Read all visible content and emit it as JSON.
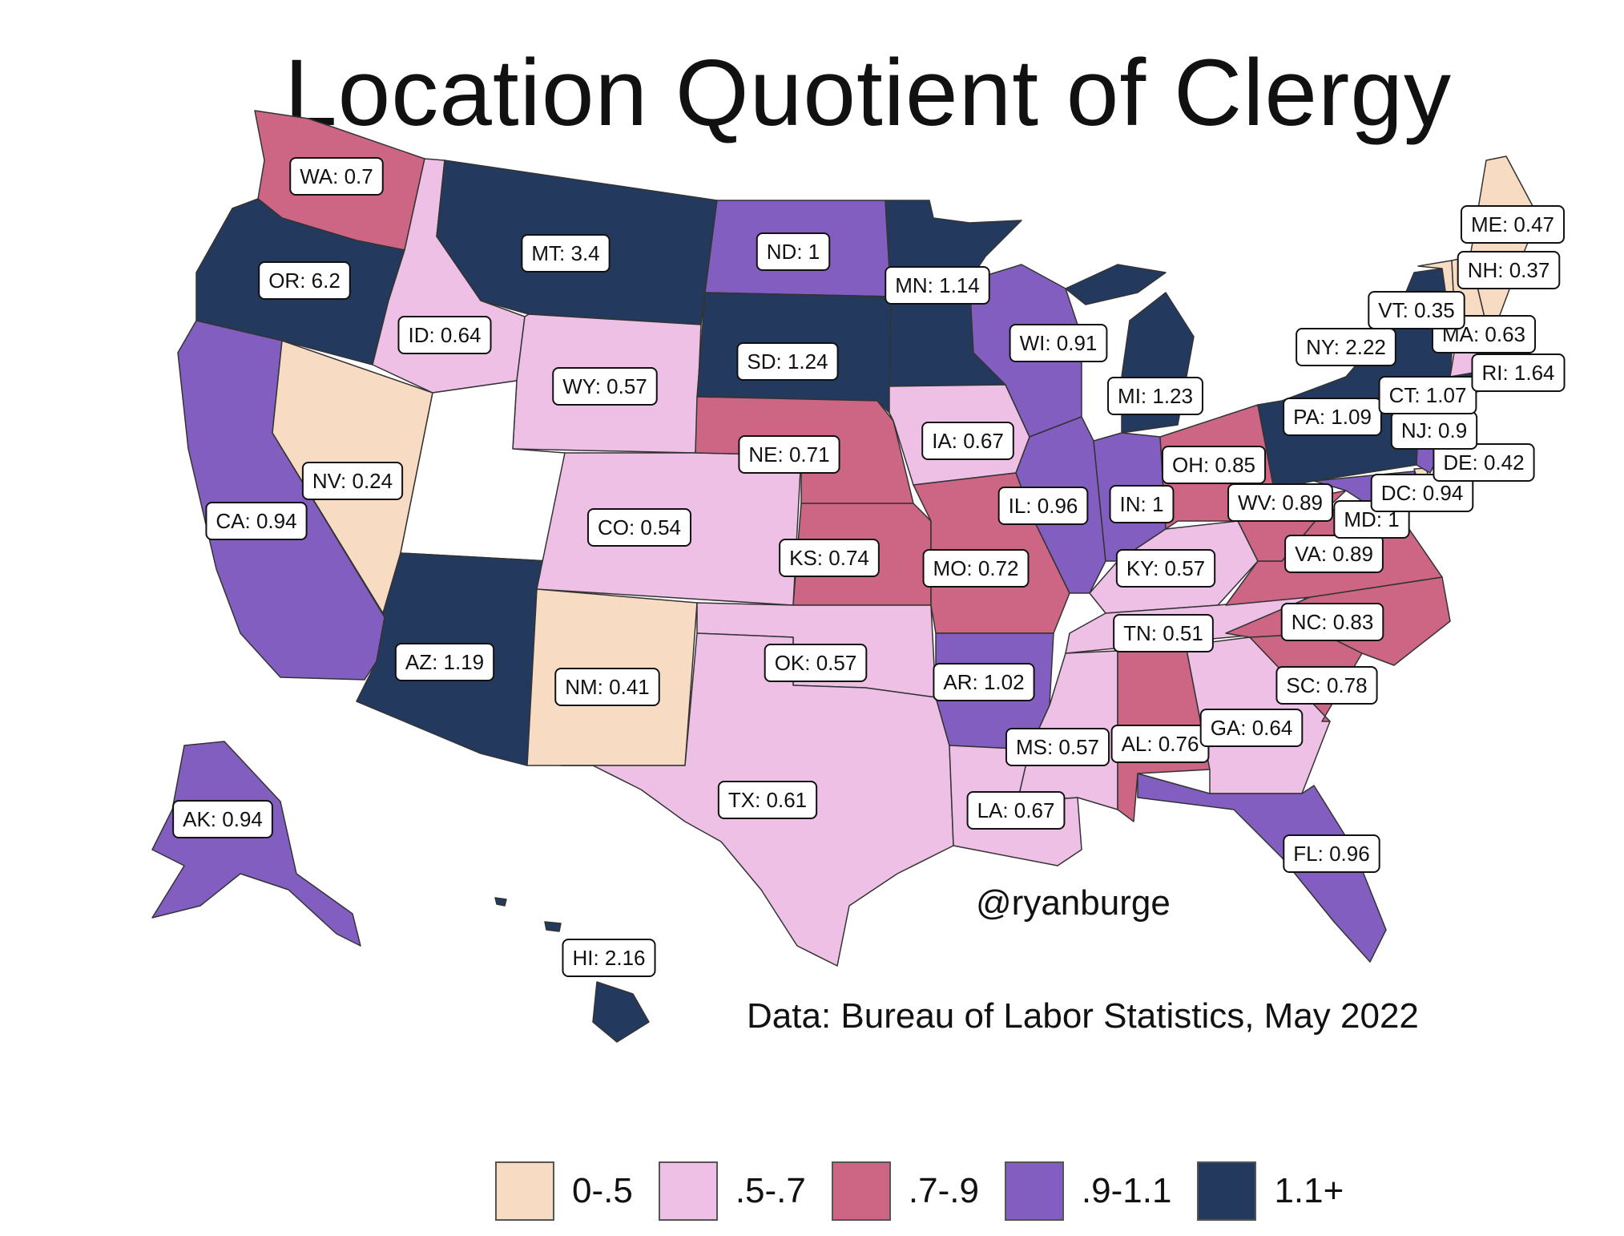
{
  "title": "Location Quotient of Clergy",
  "credit": "@ryanburge",
  "source": "Data: Bureau of Labor Statistics, May 2022",
  "colors": {
    "bin0": "#f7dcc3",
    "bin1": "#efc0e6",
    "bin2": "#cd6684",
    "bin3": "#835ec1",
    "bin4": "#24395e",
    "nodata": "#ffffff",
    "border": "#333333"
  },
  "legend": [
    {
      "label": "0-.5",
      "color": "#f7dcc3"
    },
    {
      "label": ".5-.7",
      "color": "#efc0e6"
    },
    {
      "label": ".7-.9",
      "color": "#cd6684"
    },
    {
      "label": ".9-1.1",
      "color": "#835ec1"
    },
    {
      "label": "1.1+",
      "color": "#24395e"
    }
  ],
  "states": [
    {
      "abbr": "WA",
      "label": "WA: 0.7"
    },
    {
      "abbr": "OR",
      "label": "OR: 6.2"
    },
    {
      "abbr": "CA",
      "label": "CA: 0.94"
    },
    {
      "abbr": "NV",
      "label": "NV: 0.24"
    },
    {
      "abbr": "ID",
      "label": "ID: 0.64"
    },
    {
      "abbr": "MT",
      "label": "MT: 3.4"
    },
    {
      "abbr": "WY",
      "label": "WY: 0.57"
    },
    {
      "abbr": "UT",
      "label": ""
    },
    {
      "abbr": "AZ",
      "label": "AZ: 1.19"
    },
    {
      "abbr": "CO",
      "label": "CO: 0.54"
    },
    {
      "abbr": "NM",
      "label": "NM: 0.41"
    },
    {
      "abbr": "ND",
      "label": "ND: 1"
    },
    {
      "abbr": "SD",
      "label": "SD: 1.24"
    },
    {
      "abbr": "NE",
      "label": "NE: 0.71"
    },
    {
      "abbr": "KS",
      "label": "KS: 0.74"
    },
    {
      "abbr": "OK",
      "label": "OK: 0.57"
    },
    {
      "abbr": "TX",
      "label": "TX: 0.61"
    },
    {
      "abbr": "MN",
      "label": "MN: 1.14"
    },
    {
      "abbr": "IA",
      "label": "IA: 0.67"
    },
    {
      "abbr": "MO",
      "label": "MO: 0.72"
    },
    {
      "abbr": "AR",
      "label": "AR: 1.02"
    },
    {
      "abbr": "LA",
      "label": "LA: 0.67"
    },
    {
      "abbr": "WI",
      "label": "WI: 0.91"
    },
    {
      "abbr": "IL",
      "label": "IL: 0.96"
    },
    {
      "abbr": "MI",
      "label": "MI: 1.23"
    },
    {
      "abbr": "IN",
      "label": "IN: 1"
    },
    {
      "abbr": "OH",
      "label": "OH: 0.85"
    },
    {
      "abbr": "KY",
      "label": "KY: 0.57"
    },
    {
      "abbr": "TN",
      "label": "TN: 0.51"
    },
    {
      "abbr": "MS",
      "label": "MS: 0.57"
    },
    {
      "abbr": "AL",
      "label": "AL: 0.76"
    },
    {
      "abbr": "GA",
      "label": "GA: 0.64"
    },
    {
      "abbr": "FL",
      "label": "FL: 0.96"
    },
    {
      "abbr": "SC",
      "label": "SC: 0.78"
    },
    {
      "abbr": "NC",
      "label": "NC: 0.83"
    },
    {
      "abbr": "VA",
      "label": "VA: 0.89"
    },
    {
      "abbr": "WV",
      "label": "WV: 0.89"
    },
    {
      "abbr": "MD",
      "label": "MD: 1"
    },
    {
      "abbr": "DC",
      "label": "DC: 0.94"
    },
    {
      "abbr": "DE",
      "label": "DE: 0.42"
    },
    {
      "abbr": "NJ",
      "label": "NJ: 0.9"
    },
    {
      "abbr": "PA",
      "label": "PA: 1.09"
    },
    {
      "abbr": "NY",
      "label": "NY: 2.22"
    },
    {
      "abbr": "CT",
      "label": "CT: 1.07"
    },
    {
      "abbr": "RI",
      "label": "RI: 1.64"
    },
    {
      "abbr": "MA",
      "label": "MA: 0.63"
    },
    {
      "abbr": "VT",
      "label": "VT: 0.35"
    },
    {
      "abbr": "NH",
      "label": "NH: 0.37"
    },
    {
      "abbr": "ME",
      "label": "ME: 0.47"
    },
    {
      "abbr": "AK",
      "label": "AK: 0.94"
    },
    {
      "abbr": "HI",
      "label": "HI: 2.16"
    }
  ]
}
